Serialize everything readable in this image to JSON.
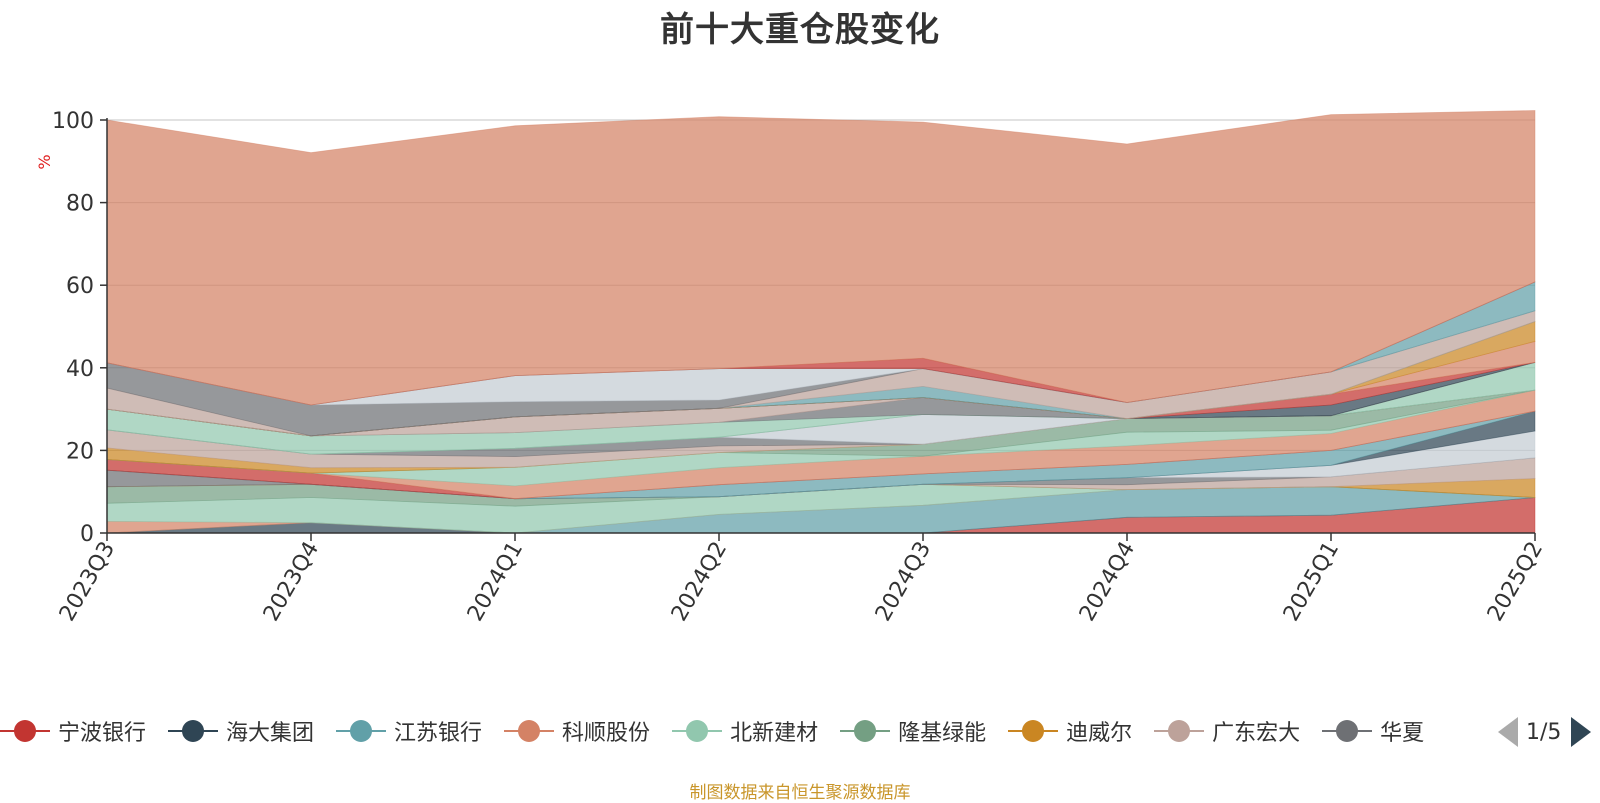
{
  "title": "前十大重仓股变化",
  "footer": "制图数据来自恒生聚源数据库",
  "legend_page": "1/5",
  "legend": [
    {
      "name": "宁波银行",
      "color": "#c23531"
    },
    {
      "name": "海大集团",
      "color": "#2f4554"
    },
    {
      "name": "江苏银行",
      "color": "#61a0a8"
    },
    {
      "name": "科顺股份",
      "color": "#d48265"
    },
    {
      "name": "北新建材",
      "color": "#91c7ae"
    },
    {
      "name": "隆基绿能",
      "color": "#749f83"
    },
    {
      "name": "迪威尔",
      "color": "#ca8622"
    },
    {
      "name": "广东宏大",
      "color": "#bda29a"
    },
    {
      "name": "华夏",
      "color": "#6e7074"
    }
  ],
  "chart_data": {
    "type": "area",
    "stacked": true,
    "ylabel": "%",
    "ylim": [
      0,
      100
    ],
    "yticks": [
      0,
      20,
      40,
      60,
      80,
      100
    ],
    "grid": true,
    "categories": [
      "2023Q3",
      "2023Q4",
      "2024Q1",
      "2024Q2",
      "2024Q3",
      "2024Q4",
      "2025Q1",
      "2025Q2"
    ],
    "series": [
      {
        "color": "#c23531",
        "values": [
          0,
          0,
          0,
          0,
          0,
          3.8,
          4.3,
          8.6
        ]
      },
      {
        "color": "#2f4554",
        "values": [
          0,
          2.5,
          0,
          0,
          0,
          0,
          0,
          0
        ]
      },
      {
        "color": "#61a0a8",
        "values": [
          0,
          0,
          0,
          4.5,
          6.7,
          6.7,
          6.9,
          0
        ]
      },
      {
        "color": "#d48265",
        "values": [
          2.8,
          0,
          0,
          0,
          0,
          0,
          0,
          0
        ]
      },
      {
        "color": "#91c7ae",
        "values": [
          4.4,
          6.1,
          6.5,
          4.3,
          5.1,
          0,
          0,
          0
        ]
      },
      {
        "color": "#749f83",
        "values": [
          4.0,
          3.2,
          1.8,
          0,
          0,
          0,
          0,
          0
        ]
      },
      {
        "color": "#ca8622",
        "values": [
          0,
          0,
          0,
          0,
          0,
          0,
          0,
          4.6
        ]
      },
      {
        "color": "#bda29a",
        "values": [
          0,
          0,
          0,
          0,
          0,
          1.2,
          2.4,
          5.0
        ]
      },
      {
        "color": "#6e7074",
        "values": [
          4.0,
          0,
          0,
          0,
          0,
          1.7,
          0,
          0
        ]
      },
      {
        "color": "#c4ccd3",
        "values": [
          0,
          0,
          0,
          0,
          0,
          0,
          2.8,
          6.5
        ]
      },
      {
        "color": "#2f4554",
        "values": [
          0,
          0,
          0,
          0,
          0,
          0,
          0,
          4.8
        ]
      },
      {
        "color": "#61a0a8",
        "values": [
          0,
          0,
          0,
          2.9,
          2.5,
          3.2,
          3.6,
          0
        ]
      },
      {
        "color": "#c23531",
        "values": [
          2.6,
          2.7,
          0,
          0,
          0,
          0,
          0,
          0
        ]
      },
      {
        "color": "#d48265",
        "values": [
          0,
          0,
          3.1,
          4.1,
          4.3,
          4.5,
          4.1,
          5.1
        ]
      },
      {
        "color": "#91c7ae",
        "values": [
          0,
          0,
          4.5,
          3.7,
          0,
          3.3,
          0.8,
          0
        ]
      },
      {
        "color": "#749f83",
        "values": [
          0,
          0,
          0,
          0,
          2.9,
          3.3,
          3.5,
          0
        ]
      },
      {
        "color": "#ca8622",
        "values": [
          2.8,
          1.3,
          0,
          0,
          0,
          0,
          0,
          0
        ]
      },
      {
        "color": "#bda29a",
        "values": [
          4.4,
          3.3,
          2.6,
          1.6,
          0,
          0,
          0,
          0
        ]
      },
      {
        "color": "#6e7074",
        "values": [
          0,
          0,
          2.0,
          2.1,
          0,
          0,
          0,
          0
        ]
      },
      {
        "color": "#c4ccd3",
        "values": [
          0,
          0,
          0,
          0,
          7.2,
          0,
          0,
          0
        ]
      },
      {
        "color": "#749f83",
        "values": [
          0,
          0,
          0,
          0,
          0,
          0,
          0,
          0
        ]
      },
      {
        "color": "#91c7ae",
        "values": [
          5.0,
          4.4,
          3.8,
          3.6,
          0,
          0,
          0,
          6.7
        ]
      },
      {
        "color": "#6e7074",
        "values": [
          0,
          0,
          0,
          0,
          4.1,
          0,
          0,
          0
        ]
      },
      {
        "color": "#bda29a",
        "values": [
          0,
          0,
          3.8,
          3.4,
          0,
          0,
          0,
          0
        ]
      },
      {
        "color": "#2f4554",
        "values": [
          0,
          0,
          0,
          0,
          0,
          0,
          2.6,
          0
        ]
      },
      {
        "color": "#c23531",
        "values": [
          0,
          0,
          0,
          0,
          0,
          0,
          2.6,
          0
        ]
      },
      {
        "color": "#d48265",
        "values": [
          0,
          0,
          0,
          0,
          0,
          0,
          0,
          5.1
        ]
      },
      {
        "color": "#ca8622",
        "values": [
          0,
          0,
          0,
          0,
          0,
          0,
          0,
          4.8
        ]
      },
      {
        "color": "#61a0a8",
        "values": [
          0,
          0,
          0,
          0,
          2.7,
          0,
          0,
          0
        ]
      },
      {
        "color": "#bda29a",
        "values": [
          5.1,
          0,
          0,
          0,
          4.3,
          3.9,
          5.4,
          2.6
        ]
      },
      {
        "color": "#6e7074",
        "values": [
          6.1,
          7.5,
          3.7,
          2.0,
          0,
          0,
          0,
          0
        ]
      },
      {
        "color": "#c4ccd3",
        "values": [
          0,
          0,
          6.3,
          7.6,
          0,
          0,
          0,
          0
        ]
      },
      {
        "color": "#61a0a8",
        "values": [
          0,
          0,
          0,
          0,
          0,
          0,
          0,
          7.0
        ]
      },
      {
        "color": "#c23531",
        "values": [
          0,
          0,
          0,
          0,
          2.5,
          0,
          0,
          0
        ]
      },
      {
        "color": "#d48265",
        "values": [
          58.8,
          61.1,
          60.5,
          61.0,
          57.2,
          62.6,
          62.3,
          41.5
        ]
      }
    ]
  }
}
